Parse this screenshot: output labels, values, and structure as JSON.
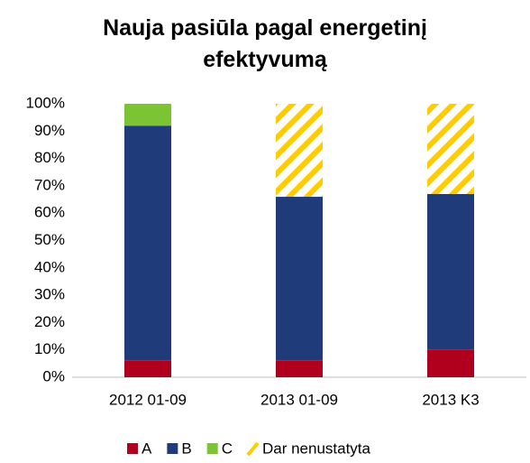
{
  "chart_data": {
    "type": "stacked_bar",
    "title": "Nauja pasiūla pagal energetinį efektyvumą",
    "categories": [
      "2012 01-09",
      "2013 01-09",
      "2013 K3"
    ],
    "series": [
      {
        "name": "A",
        "color": "#b0001e",
        "values": [
          6,
          6,
          10
        ]
      },
      {
        "name": "B",
        "color": "#1f3b7a",
        "values": [
          86,
          60,
          57
        ]
      },
      {
        "name": "C",
        "color": "#7cc433",
        "values": [
          8,
          0,
          0
        ]
      },
      {
        "name": "Dar nenustatyta",
        "color": "#ffcc00",
        "hatch": true,
        "values": [
          0,
          34,
          33
        ]
      }
    ],
    "ylim": [
      0,
      100
    ],
    "yticks": [
      {
        "value": 0,
        "label": "0%"
      },
      {
        "value": 10,
        "label": "10%"
      },
      {
        "value": 20,
        "label": "20%"
      },
      {
        "value": 30,
        "label": "30%"
      },
      {
        "value": 40,
        "label": "40%"
      },
      {
        "value": 50,
        "label": "50%"
      },
      {
        "value": 60,
        "label": "60%"
      },
      {
        "value": 70,
        "label": "70%"
      },
      {
        "value": 80,
        "label": "80%"
      },
      {
        "value": 90,
        "label": "90%"
      },
      {
        "value": 100,
        "label": "100%"
      }
    ],
    "grid": false,
    "legend": "bottom"
  }
}
